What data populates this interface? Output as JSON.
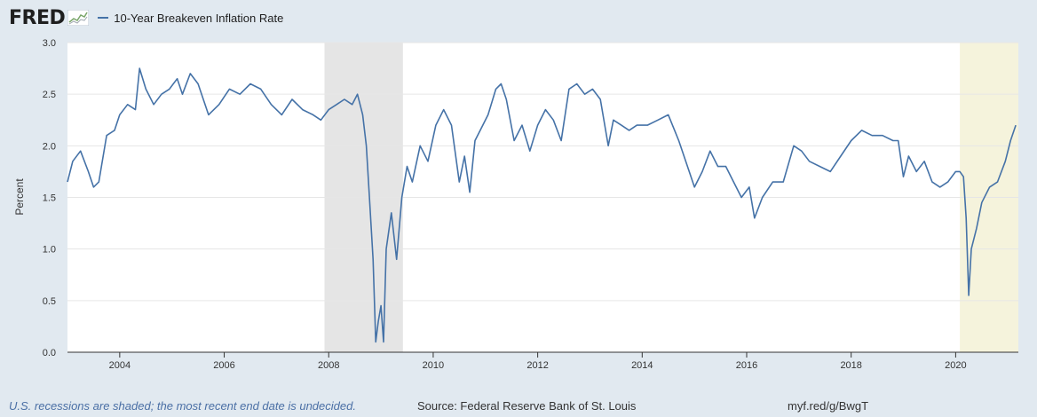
{
  "header": {
    "logo_text": "FRED",
    "legend_label": "10-Year Breakeven Inflation Rate"
  },
  "colors": {
    "series": "#4572a7",
    "recession_2008": "#e5e5e5",
    "recession_2020": "#f5f3dc",
    "background": "#e1e9f0",
    "plot": "#ffffff"
  },
  "footer": {
    "note": "U.S. recessions are shaded; the most recent end date is undecided.",
    "source": "Source: Federal Reserve Bank of St. Louis",
    "link": "myf.red/g/BwgT"
  },
  "chart_data": {
    "type": "line",
    "title": "10-Year Breakeven Inflation Rate",
    "xlabel": "",
    "ylabel": "Percent",
    "xlim": [
      2003.0,
      2021.2
    ],
    "ylim": [
      0.0,
      3.0
    ],
    "x_ticks": [
      2004,
      2006,
      2008,
      2010,
      2012,
      2014,
      2016,
      2018,
      2020
    ],
    "x_tick_labels": [
      "2004",
      "2006",
      "2008",
      "2010",
      "2012",
      "2014",
      "2016",
      "2018",
      "2020"
    ],
    "y_ticks": [
      0,
      0.5,
      1.0,
      1.5,
      2.0,
      2.5,
      3.0
    ],
    "y_tick_labels": [
      "0.0",
      "0.5",
      "1.0",
      "1.5",
      "2.0",
      "2.5",
      "3.0"
    ],
    "grid": true,
    "recessions": [
      {
        "start": 2007.92,
        "end": 2009.42,
        "shade": "gray"
      },
      {
        "start": 2020.08,
        "end": 2021.2,
        "shade": "yellow"
      }
    ],
    "series": [
      {
        "name": "10-Year Breakeven Inflation Rate",
        "x": [
          2003.0,
          2003.1,
          2003.25,
          2003.4,
          2003.5,
          2003.6,
          2003.75,
          2003.9,
          2004.0,
          2004.15,
          2004.3,
          2004.38,
          2004.5,
          2004.65,
          2004.8,
          2004.95,
          2005.1,
          2005.2,
          2005.35,
          2005.5,
          2005.7,
          2005.9,
          2006.1,
          2006.3,
          2006.5,
          2006.7,
          2006.9,
          2007.1,
          2007.3,
          2007.5,
          2007.7,
          2007.85,
          2008.0,
          2008.15,
          2008.3,
          2008.45,
          2008.55,
          2008.65,
          2008.72,
          2008.78,
          2008.85,
          2008.9,
          2008.95,
          2009.0,
          2009.05,
          2009.1,
          2009.2,
          2009.3,
          2009.4,
          2009.5,
          2009.6,
          2009.75,
          2009.9,
          2010.05,
          2010.2,
          2010.35,
          2010.5,
          2010.6,
          2010.7,
          2010.8,
          2010.9,
          2011.05,
          2011.2,
          2011.3,
          2011.4,
          2011.55,
          2011.7,
          2011.85,
          2012.0,
          2012.15,
          2012.3,
          2012.45,
          2012.6,
          2012.75,
          2012.9,
          2013.05,
          2013.2,
          2013.35,
          2013.45,
          2013.6,
          2013.75,
          2013.9,
          2014.1,
          2014.3,
          2014.5,
          2014.7,
          2014.9,
          2015.0,
          2015.15,
          2015.3,
          2015.45,
          2015.6,
          2015.75,
          2015.9,
          2016.05,
          2016.15,
          2016.3,
          2016.5,
          2016.7,
          2016.9,
          2017.05,
          2017.2,
          2017.4,
          2017.6,
          2017.8,
          2018.0,
          2018.2,
          2018.4,
          2018.6,
          2018.8,
          2018.9,
          2019.0,
          2019.1,
          2019.25,
          2019.4,
          2019.55,
          2019.7,
          2019.85,
          2020.0,
          2020.08,
          2020.15,
          2020.2,
          2020.25,
          2020.3,
          2020.4,
          2020.5,
          2020.65,
          2020.8,
          2020.95,
          2021.05,
          2021.15
        ],
        "values": [
          1.65,
          1.85,
          1.95,
          1.75,
          1.6,
          1.65,
          2.1,
          2.15,
          2.3,
          2.4,
          2.35,
          2.75,
          2.55,
          2.4,
          2.5,
          2.55,
          2.65,
          2.5,
          2.7,
          2.6,
          2.3,
          2.4,
          2.55,
          2.5,
          2.6,
          2.55,
          2.4,
          2.3,
          2.45,
          2.35,
          2.3,
          2.25,
          2.35,
          2.4,
          2.45,
          2.4,
          2.5,
          2.3,
          2.0,
          1.5,
          0.9,
          0.1,
          0.3,
          0.45,
          0.1,
          1.0,
          1.35,
          0.9,
          1.5,
          1.8,
          1.65,
          2.0,
          1.85,
          2.2,
          2.35,
          2.2,
          1.65,
          1.9,
          1.55,
          2.05,
          2.15,
          2.3,
          2.55,
          2.6,
          2.45,
          2.05,
          2.2,
          1.95,
          2.2,
          2.35,
          2.25,
          2.05,
          2.55,
          2.6,
          2.5,
          2.55,
          2.45,
          2.0,
          2.25,
          2.2,
          2.15,
          2.2,
          2.2,
          2.25,
          2.3,
          2.05,
          1.75,
          1.6,
          1.75,
          1.95,
          1.8,
          1.8,
          1.65,
          1.5,
          1.6,
          1.3,
          1.5,
          1.65,
          1.65,
          2.0,
          1.95,
          1.85,
          1.8,
          1.75,
          1.9,
          2.05,
          2.15,
          2.1,
          2.1,
          2.05,
          2.05,
          1.7,
          1.9,
          1.75,
          1.85,
          1.65,
          1.6,
          1.65,
          1.75,
          1.75,
          1.7,
          1.3,
          0.55,
          1.0,
          1.2,
          1.45,
          1.6,
          1.65,
          1.85,
          2.05,
          2.2
        ]
      }
    ]
  }
}
